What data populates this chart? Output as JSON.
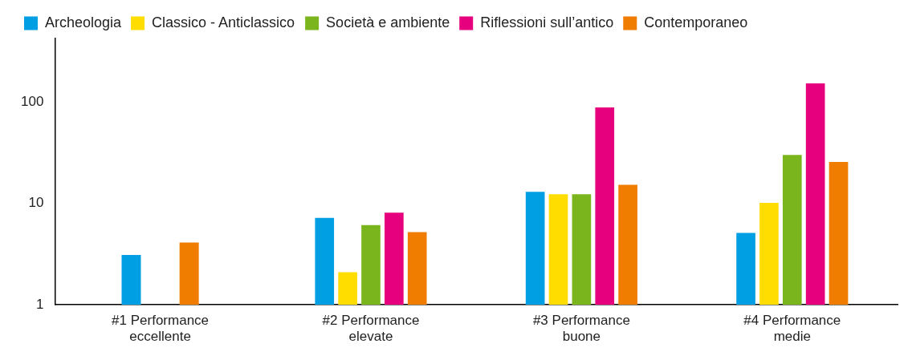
{
  "chart_data": {
    "type": "bar",
    "categories": [
      "#1 Performance eccellente",
      "#2 Performance elevate",
      "#3 Performance buone",
      "#4 Performance medie"
    ],
    "series": [
      {
        "name": "Archeologia",
        "color": "#009fe3",
        "values": [
          3.1,
          7.2,
          13,
          5.1
        ]
      },
      {
        "name": "Classico - Anticlassico",
        "color": "#ffdd00",
        "values": [
          null,
          2.1,
          12.3,
          10.1
        ]
      },
      {
        "name": "Società e ambiente",
        "color": "#7ab51d",
        "values": [
          null,
          6.1,
          12.3,
          30
        ]
      },
      {
        "name": "Riflessioni sull’antico",
        "color": "#e6007e",
        "values": [
          null,
          8.1,
          88,
          152
        ]
      },
      {
        "name": "Contemporaneo",
        "color": "#f07d00",
        "values": [
          4.1,
          5.2,
          15.2,
          25.5
        ]
      }
    ],
    "log": "y",
    "ylim": [
      1,
      420
    ],
    "yticks": [
      1,
      10,
      100
    ],
    "grid": false,
    "legend": "top left"
  }
}
